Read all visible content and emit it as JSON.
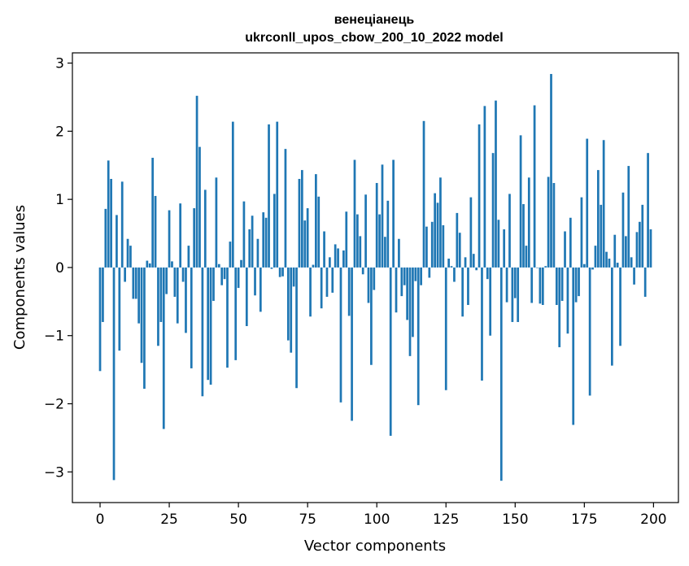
{
  "chart_data": {
    "type": "bar",
    "title": "венеціанець",
    "subtitle": "ukrconll_upos_cbow_200_10_2022 model",
    "xlabel": "Vector components",
    "ylabel": "Components values",
    "xlim": [
      -10,
      209
    ],
    "ylim": [
      -3.45,
      3.15
    ],
    "xticks": [
      0,
      25,
      50,
      75,
      100,
      125,
      150,
      175,
      200
    ],
    "xtick_labels": [
      "0",
      "25",
      "50",
      "75",
      "100",
      "125",
      "150",
      "175",
      "200"
    ],
    "yticks": [
      -3,
      -2,
      -1,
      0,
      1,
      2,
      3
    ],
    "ytick_labels": [
      "−3",
      "−2",
      "−1",
      "0",
      "1",
      "2",
      "3"
    ],
    "grid": false,
    "bar_color": "#1f77b4",
    "x": [
      0,
      1,
      2,
      3,
      4,
      5,
      6,
      7,
      8,
      9,
      10,
      11,
      12,
      13,
      14,
      15,
      16,
      17,
      18,
      19,
      20,
      21,
      22,
      23,
      24,
      25,
      26,
      27,
      28,
      29,
      30,
      31,
      32,
      33,
      34,
      35,
      36,
      37,
      38,
      39,
      40,
      41,
      42,
      43,
      44,
      45,
      46,
      47,
      48,
      49,
      50,
      51,
      52,
      53,
      54,
      55,
      56,
      57,
      58,
      59,
      60,
      61,
      62,
      63,
      64,
      65,
      66,
      67,
      68,
      69,
      70,
      71,
      72,
      73,
      74,
      75,
      76,
      77,
      78,
      79,
      80,
      81,
      82,
      83,
      84,
      85,
      86,
      87,
      88,
      89,
      90,
      91,
      92,
      93,
      94,
      95,
      96,
      97,
      98,
      99,
      100,
      101,
      102,
      103,
      104,
      105,
      106,
      107,
      108,
      109,
      110,
      111,
      112,
      113,
      114,
      115,
      116,
      117,
      118,
      119,
      120,
      121,
      122,
      123,
      124,
      125,
      126,
      127,
      128,
      129,
      130,
      131,
      132,
      133,
      134,
      135,
      136,
      137,
      138,
      139,
      140,
      141,
      142,
      143,
      144,
      145,
      146,
      147,
      148,
      149,
      150,
      151,
      152,
      153,
      154,
      155,
      156,
      157,
      158,
      159,
      160,
      161,
      162,
      163,
      164,
      165,
      166,
      167,
      168,
      169,
      170,
      171,
      172,
      173,
      174,
      175,
      176,
      177,
      178,
      179,
      180,
      181,
      182,
      183,
      184,
      185,
      186,
      187,
      188,
      189,
      190,
      191,
      192,
      193,
      194,
      195,
      196,
      197,
      198,
      199
    ],
    "values": [
      -1.52,
      -0.8,
      0.86,
      1.57,
      1.3,
      -3.12,
      0.77,
      -1.22,
      1.26,
      -0.21,
      0.42,
      0.32,
      -0.46,
      -0.46,
      -0.82,
      -1.4,
      -1.78,
      0.1,
      0.06,
      1.61,
      1.05,
      -1.15,
      -0.8,
      -2.37,
      -0.39,
      0.84,
      0.09,
      -0.43,
      -0.82,
      0.94,
      -0.21,
      -0.96,
      0.32,
      -1.48,
      0.87,
      2.52,
      1.77,
      -1.89,
      1.14,
      -1.65,
      -1.72,
      -0.49,
      1.32,
      0.05,
      -0.26,
      -0.17,
      -1.47,
      0.38,
      2.14,
      -1.36,
      -0.3,
      0.11,
      0.97,
      -0.86,
      0.56,
      0.76,
      -0.41,
      0.42,
      -0.65,
      0.81,
      0.73,
      2.1,
      -0.02,
      1.08,
      2.14,
      -0.14,
      -0.13,
      1.74,
      -1.07,
      -1.25,
      -0.28,
      -1.77,
      1.3,
      1.43,
      0.69,
      0.87,
      -0.72,
      0.04,
      1.37,
      1.04,
      -0.6,
      0.53,
      -0.43,
      0.15,
      -0.37,
      0.34,
      0.28,
      -1.98,
      0.25,
      0.82,
      -0.71,
      -2.25,
      1.58,
      0.78,
      0.46,
      -0.1,
      1.07,
      -0.52,
      -1.43,
      -0.33,
      1.24,
      0.78,
      1.51,
      0.45,
      0.98,
      -2.47,
      1.58,
      -0.66,
      0.42,
      -0.42,
      -0.26,
      -0.77,
      -1.3,
      -1.02,
      -0.2,
      -2.02,
      -0.26,
      2.15,
      0.6,
      -0.15,
      0.67,
      1.09,
      0.95,
      1.32,
      0.62,
      -1.8,
      0.13,
      0.02,
      -0.21,
      0.8,
      0.51,
      -0.72,
      0.15,
      -0.55,
      1.03,
      0.2,
      -0.04,
      2.1,
      -1.66,
      2.37,
      -0.17,
      -1.0,
      1.68,
      2.45,
      0.7,
      -3.13,
      0.56,
      -0.51,
      1.08,
      -0.8,
      -0.45,
      -0.8,
      1.94,
      0.93,
      0.32,
      1.32,
      -0.52,
      2.38,
      0.0,
      -0.53,
      -0.55,
      0.02,
      1.33,
      2.84,
      1.24,
      -0.55,
      -1.17,
      -0.49,
      0.53,
      -0.97,
      0.73,
      -2.31,
      -0.51,
      -0.42,
      1.03,
      0.05,
      1.89,
      -1.88,
      -0.03,
      0.32,
      1.43,
      0.92,
      1.87,
      0.23,
      0.13,
      -1.44,
      0.48,
      0.07,
      -1.15,
      1.1,
      0.46,
      1.49,
      0.15,
      -0.25,
      0.52,
      0.67,
      0.92,
      -0.43,
      1.68,
      0.56
    ]
  }
}
